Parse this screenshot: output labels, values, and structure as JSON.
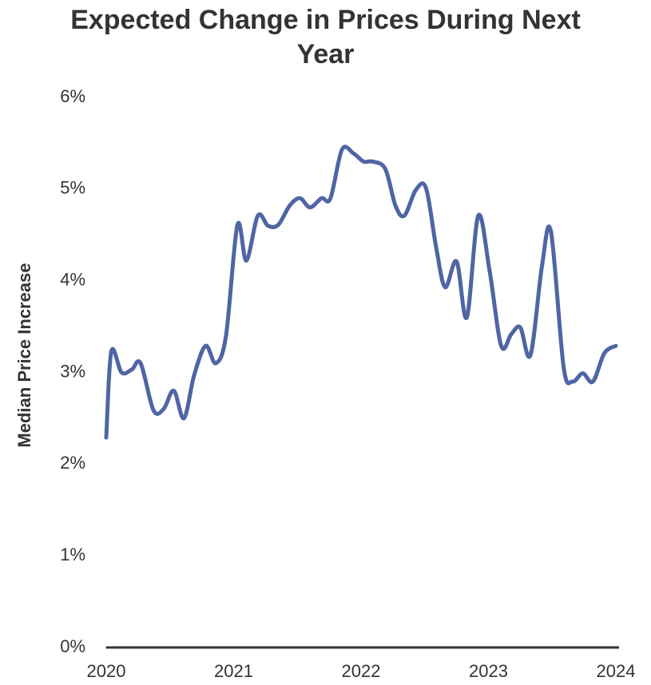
{
  "chart_data": {
    "type": "line",
    "title": "Expected Change in Prices During Next Year",
    "y_label": "Median Price Increase",
    "x": [
      2020.0,
      2020.04,
      2020.12,
      2020.2,
      2020.27,
      2020.37,
      2020.45,
      2020.53,
      2020.61,
      2020.69,
      2020.78,
      2020.86,
      2020.94,
      2021.03,
      2021.1,
      2021.19,
      2021.27,
      2021.35,
      2021.44,
      2021.52,
      2021.6,
      2021.69,
      2021.76,
      2021.85,
      2021.94,
      2022.02,
      2022.09,
      2022.19,
      2022.27,
      2022.34,
      2022.43,
      2022.51,
      2022.59,
      2022.66,
      2022.75,
      2022.83,
      2022.92,
      2023.01,
      2023.1,
      2023.18,
      2023.25,
      2023.33,
      2023.42,
      2023.49,
      2023.59,
      2023.66,
      2023.74,
      2023.82,
      2023.91,
      2024.0
    ],
    "series": [
      {
        "name": "Median Price Increase",
        "color": "#4f65a4",
        "values": [
          2.29,
          3.23,
          3.0,
          3.03,
          3.1,
          2.59,
          2.6,
          2.8,
          2.5,
          2.97,
          3.29,
          3.1,
          3.4,
          4.61,
          4.22,
          4.71,
          4.6,
          4.61,
          4.82,
          4.9,
          4.8,
          4.9,
          4.9,
          5.43,
          5.39,
          5.3,
          5.3,
          5.22,
          4.82,
          4.71,
          4.99,
          5.01,
          4.36,
          3.93,
          4.21,
          3.6,
          4.71,
          4.1,
          3.29,
          3.42,
          3.49,
          3.19,
          4.16,
          4.54,
          3.06,
          2.9,
          2.99,
          2.9,
          3.21,
          3.29
        ]
      }
    ],
    "xlim": [
      2020,
      2024
    ],
    "xticks": [
      2020,
      2021,
      2022,
      2023,
      2024
    ],
    "ylim": [
      0,
      6
    ],
    "yticks": [
      {
        "value": 0,
        "label": "0%"
      },
      {
        "value": 1,
        "label": "1%"
      },
      {
        "value": 2,
        "label": "2%"
      },
      {
        "value": 3,
        "label": "3%"
      },
      {
        "value": 4,
        "label": "4%"
      },
      {
        "value": 5,
        "label": "5%"
      },
      {
        "value": 6,
        "label": "6%"
      }
    ],
    "grid": false
  }
}
